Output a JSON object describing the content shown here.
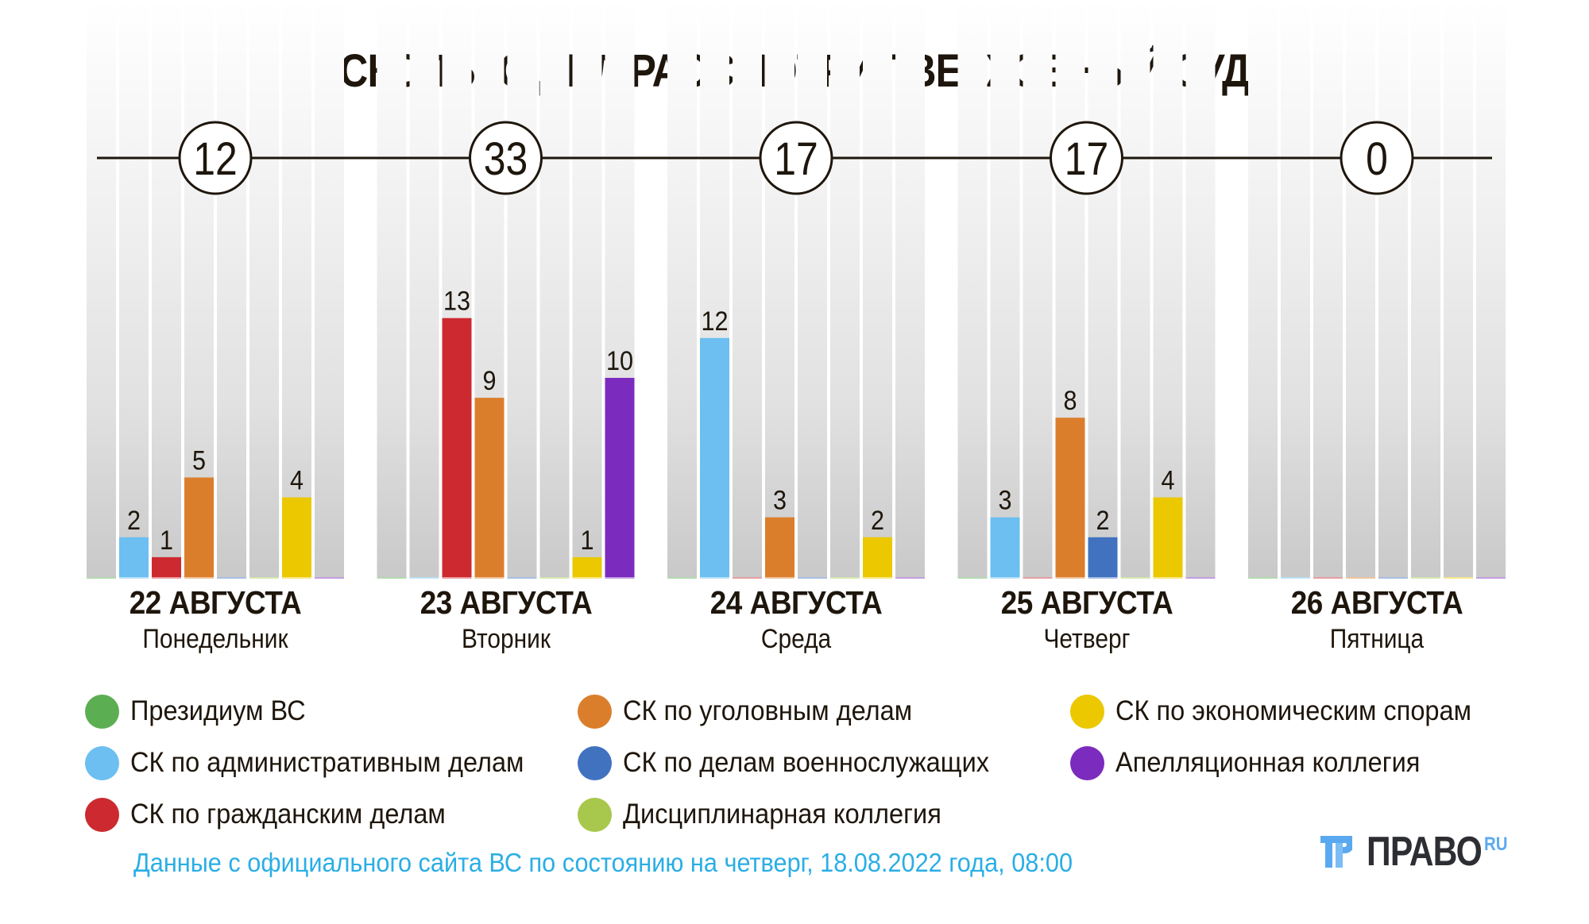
{
  "title": "СКОЛЬКО ДЕЛ РАССМОТРИТ ВЕРХОВНЫЙ СУД",
  "chart_data": {
    "type": "bar",
    "title": "СКОЛЬКО ДЕЛ РАССМОТРИТ ВЕРХОВНЫЙ СУД",
    "xlabel": "",
    "ylabel": "",
    "ylim": [
      0,
      13
    ],
    "grid": false,
    "legend_position": "bottom",
    "categories": [
      {
        "date": "22 АВГУСТА",
        "weekday": "Понедельник",
        "total": "12"
      },
      {
        "date": "23 АВГУСТА",
        "weekday": "Вторник",
        "total": "33"
      },
      {
        "date": "24 АВГУСТА",
        "weekday": "Среда",
        "total": "17"
      },
      {
        "date": "25 АВГУСТА",
        "weekday": "Четверг",
        "total": "17"
      },
      {
        "date": "26 АВГУСТА",
        "weekday": "Пятница",
        "total": "0"
      }
    ],
    "series": [
      {
        "name": "Президиум ВС",
        "color": "#5cae52",
        "values": [
          0,
          0,
          0,
          0,
          0
        ]
      },
      {
        "name": "СК по административным делам",
        "color": "#6cbff0",
        "values": [
          2,
          0,
          12,
          3,
          0
        ]
      },
      {
        "name": "СК по гражданским делам",
        "color": "#cc2a30",
        "values": [
          1,
          13,
          0,
          0,
          0
        ]
      },
      {
        "name": "СК по уголовным делам",
        "color": "#db7e2c",
        "values": [
          5,
          9,
          3,
          8,
          0
        ]
      },
      {
        "name": "СК по делам военнослужащих",
        "color": "#4072c0",
        "values": [
          0,
          0,
          0,
          2,
          0
        ]
      },
      {
        "name": "Дисциплинарная коллегия",
        "color": "#a7c84c",
        "values": [
          0,
          0,
          0,
          0,
          0
        ]
      },
      {
        "name": "СК по экономическим спорам",
        "color": "#ebc800",
        "values": [
          4,
          1,
          2,
          4,
          0
        ]
      },
      {
        "name": "Апелляционная коллегия",
        "color": "#7b2bbd",
        "values": [
          0,
          10,
          0,
          0,
          0
        ]
      }
    ]
  },
  "legend": {
    "columns": [
      [
        0,
        1,
        2
      ],
      [
        3,
        4,
        5
      ],
      [
        6,
        7
      ]
    ]
  },
  "footer": {
    "note": "Данные с официального сайта ВС по состоянию на четверг, 18.08.2022 года, 08:00"
  },
  "logo": {
    "text": "ПРАВО",
    "suffix": "RU",
    "icon": "pravo-logo-icon"
  },
  "colors": {
    "text": "#1e160c",
    "note": "#2aaee5",
    "column_top": "#fcfcfc",
    "column_bottom": "#c8c8c8"
  }
}
